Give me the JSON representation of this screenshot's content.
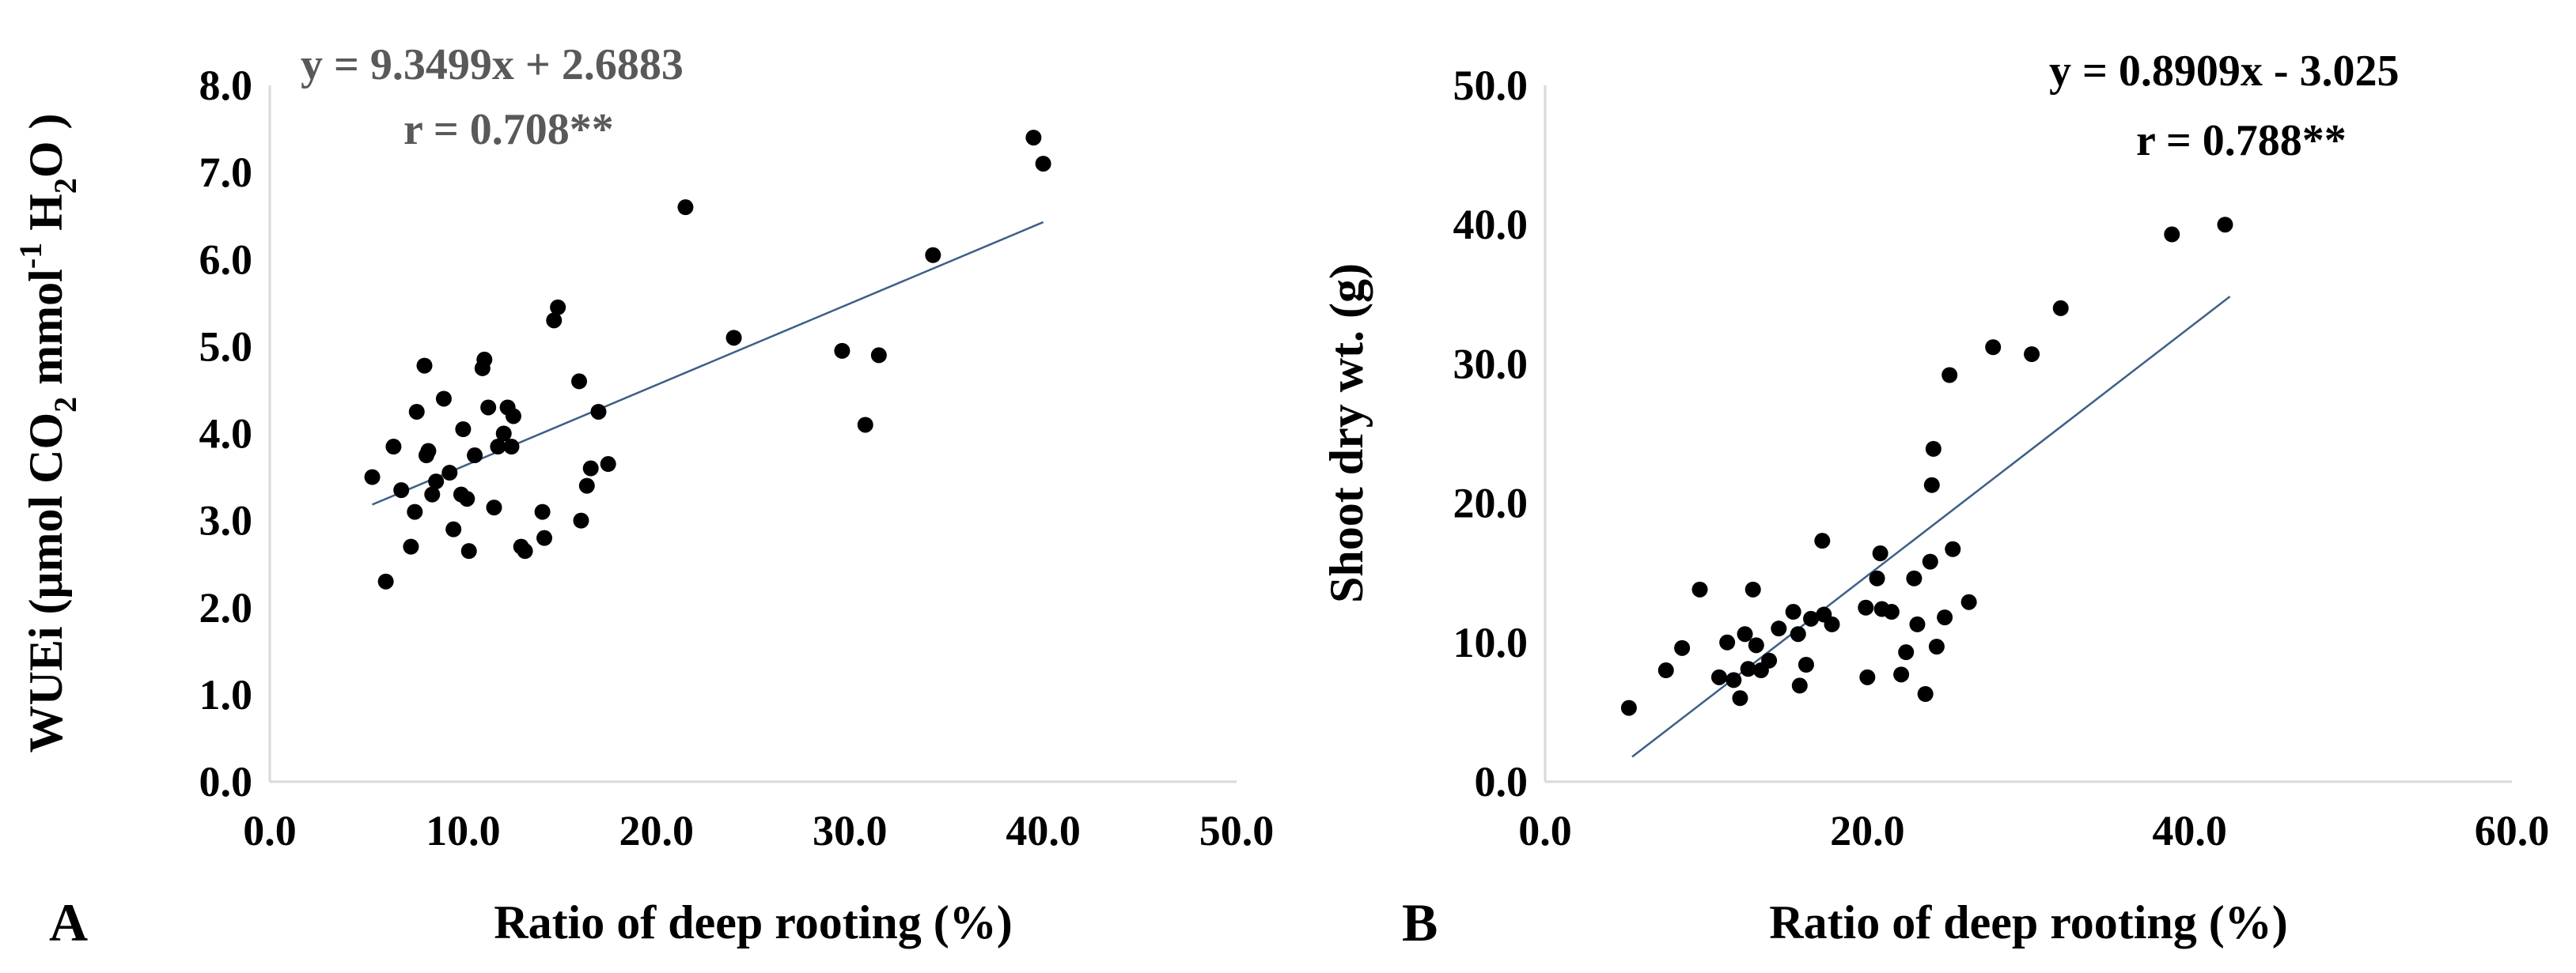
{
  "chart_data": [
    {
      "panel": "A",
      "type": "scatter",
      "xlabel": "Ratio of deep rooting (%)",
      "ylabel": "WUEi (μmol CO₂ mmol⁻¹ H₂O )",
      "ylabel_parts": {
        "pre": "WUEi (μmol CO",
        "sub1": "2",
        "mid1": " mmol",
        "sup": "-1",
        "mid2": " H",
        "sub2": "2",
        "post": "O )"
      },
      "xlim": [
        0,
        50
      ],
      "ylim": [
        0,
        8
      ],
      "x_ticks": [
        "0.0",
        "10.0",
        "20.0",
        "30.0",
        "40.0",
        "50.0"
      ],
      "y_ticks": [
        "0.0",
        "1.0",
        "2.0",
        "3.0",
        "4.0",
        "5.0",
        "6.0",
        "7.0",
        "8.0"
      ],
      "equation": "y = 9.3499x + 2.6883",
      "r_text": "r = 0.708**",
      "annotation_color": "#595959",
      "trendline": {
        "slope": 9.3499,
        "intercept": 2.6883,
        "x_scale": 0.01,
        "x_range": [
          5.3,
          40.0
        ],
        "color": "#3c5f86"
      },
      "points": [
        [
          5.3,
          3.5
        ],
        [
          6.0,
          2.3
        ],
        [
          6.4,
          3.85
        ],
        [
          6.8,
          3.35
        ],
        [
          7.3,
          2.7
        ],
        [
          7.5,
          3.1
        ],
        [
          7.6,
          4.25
        ],
        [
          8.0,
          4.78
        ],
        [
          8.1,
          3.75
        ],
        [
          8.2,
          3.8
        ],
        [
          8.4,
          3.3
        ],
        [
          8.6,
          3.45
        ],
        [
          9.0,
          4.4
        ],
        [
          9.3,
          3.55
        ],
        [
          9.5,
          2.9
        ],
        [
          9.9,
          3.3
        ],
        [
          10.0,
          4.05
        ],
        [
          10.2,
          3.25
        ],
        [
          10.3,
          2.65
        ],
        [
          10.6,
          3.75
        ],
        [
          11.0,
          4.75
        ],
        [
          11.1,
          4.85
        ],
        [
          11.3,
          4.3
        ],
        [
          11.6,
          3.15
        ],
        [
          11.8,
          3.85
        ],
        [
          12.1,
          4.0
        ],
        [
          12.3,
          4.3
        ],
        [
          12.5,
          3.85
        ],
        [
          12.6,
          4.2
        ],
        [
          13.0,
          2.7
        ],
        [
          13.2,
          2.65
        ],
        [
          14.1,
          3.1
        ],
        [
          14.2,
          2.8
        ],
        [
          14.7,
          5.3
        ],
        [
          14.9,
          5.45
        ],
        [
          16.0,
          4.6
        ],
        [
          16.1,
          3.0
        ],
        [
          16.4,
          3.4
        ],
        [
          16.6,
          3.6
        ],
        [
          17.0,
          4.25
        ],
        [
          17.5,
          3.65
        ],
        [
          21.5,
          6.6
        ],
        [
          24.0,
          5.1
        ],
        [
          29.6,
          4.95
        ],
        [
          30.8,
          4.1
        ],
        [
          31.5,
          4.9
        ],
        [
          34.3,
          6.05
        ],
        [
          39.5,
          7.4
        ],
        [
          40.0,
          7.1
        ]
      ]
    },
    {
      "panel": "B",
      "type": "scatter",
      "xlabel": "Ratio of deep rooting (%)",
      "ylabel": "Shoot dry wt. (g)",
      "xlim": [
        0,
        60
      ],
      "ylim": [
        0,
        50
      ],
      "x_ticks": [
        "0.0",
        "20.0",
        "40.0",
        "60.0"
      ],
      "y_ticks": [
        "0.0",
        "10.0",
        "20.0",
        "30.0",
        "40.0",
        "50.0"
      ],
      "equation": "y = 0.8909x - 3.025",
      "r_text": "r = 0.788**",
      "annotation_color": "#000000",
      "trendline": {
        "slope": 0.8909,
        "intercept": -3.025,
        "x_scale": 1,
        "x_range": [
          5.4,
          42.5
        ],
        "color": "#3c5f86"
      },
      "points": [
        [
          5.2,
          5.3
        ],
        [
          7.5,
          8.0
        ],
        [
          8.5,
          9.6
        ],
        [
          9.6,
          13.8
        ],
        [
          10.8,
          7.5
        ],
        [
          11.3,
          10.0
        ],
        [
          11.7,
          7.3
        ],
        [
          12.1,
          6.0
        ],
        [
          12.4,
          10.6
        ],
        [
          12.6,
          8.1
        ],
        [
          12.9,
          13.8
        ],
        [
          13.1,
          9.8
        ],
        [
          13.4,
          8.0
        ],
        [
          13.9,
          8.7
        ],
        [
          14.5,
          11.0
        ],
        [
          15.4,
          12.2
        ],
        [
          15.7,
          10.6
        ],
        [
          15.8,
          6.9
        ],
        [
          16.2,
          8.4
        ],
        [
          16.5,
          11.7
        ],
        [
          17.2,
          17.3
        ],
        [
          17.3,
          12.0
        ],
        [
          17.8,
          11.3
        ],
        [
          19.9,
          12.5
        ],
        [
          20.0,
          7.5
        ],
        [
          20.6,
          14.6
        ],
        [
          20.8,
          16.4
        ],
        [
          20.9,
          12.4
        ],
        [
          21.5,
          12.2
        ],
        [
          22.1,
          7.7
        ],
        [
          22.4,
          9.3
        ],
        [
          22.9,
          14.6
        ],
        [
          23.1,
          11.3
        ],
        [
          23.6,
          6.3
        ],
        [
          23.9,
          15.8
        ],
        [
          24.0,
          21.3
        ],
        [
          24.1,
          23.9
        ],
        [
          24.3,
          9.7
        ],
        [
          24.8,
          11.8
        ],
        [
          25.1,
          29.2
        ],
        [
          25.3,
          16.7
        ],
        [
          26.3,
          12.9
        ],
        [
          27.8,
          31.2
        ],
        [
          30.2,
          30.7
        ],
        [
          32.0,
          34.0
        ],
        [
          38.9,
          39.3
        ],
        [
          42.2,
          40.0
        ]
      ]
    }
  ]
}
